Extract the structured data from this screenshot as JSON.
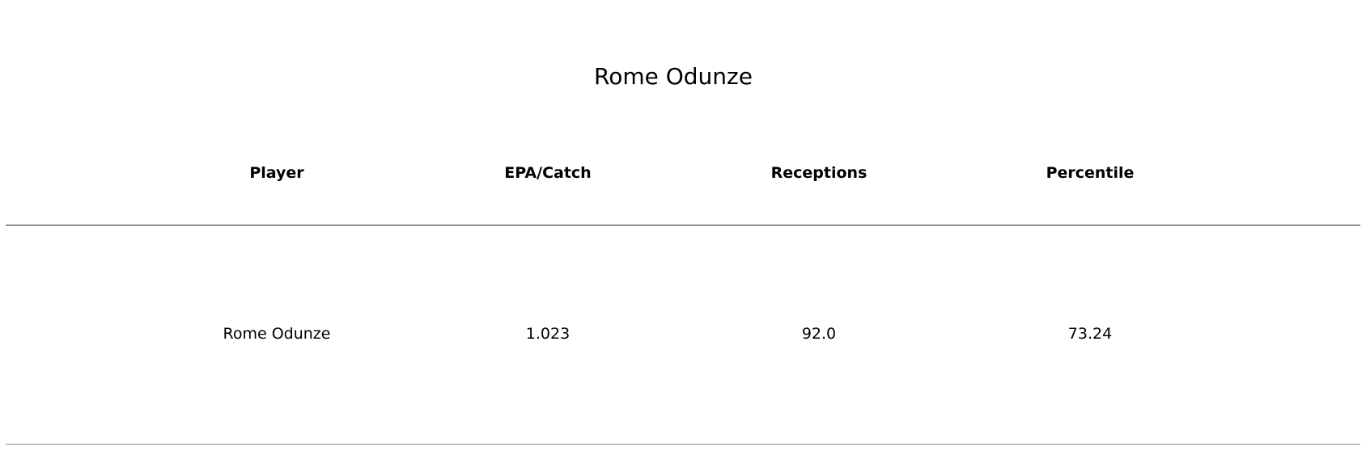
{
  "chart_data": {
    "type": "table",
    "title": "Rome Odunze",
    "columns": [
      "Player",
      "EPA/Catch",
      "Receptions",
      "Percentile"
    ],
    "rows": [
      [
        "Rome Odunze",
        "1.023",
        "92.0",
        "73.24"
      ]
    ]
  }
}
